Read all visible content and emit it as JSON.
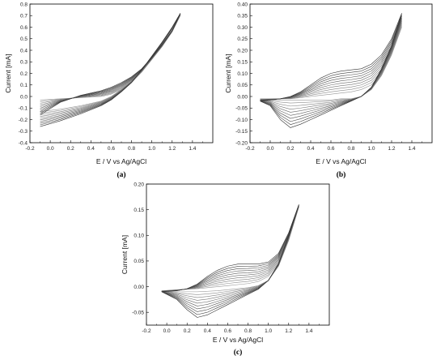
{
  "chart_data": [
    {
      "type": "line",
      "panel_label": "(a)",
      "xlabel": "E / V vs Ag/AgCl",
      "ylabel": "Current [mA]",
      "xlim": [
        -0.2,
        1.6
      ],
      "ylim": [
        -0.4,
        0.8
      ],
      "xticks": [
        -0.2,
        0.0,
        0.2,
        0.4,
        0.6,
        0.8,
        1.0,
        1.2,
        1.4
      ],
      "yticks": [
        -0.4,
        -0.3,
        -0.2,
        -0.1,
        0.0,
        0.1,
        0.2,
        0.3,
        0.4,
        0.5,
        0.6,
        0.7,
        0.8
      ],
      "x_tick_labels": [
        "-0.2",
        "0.0",
        "0.2",
        "0.4",
        "0.6",
        "0.8",
        "1.0",
        "1.2",
        "1.4"
      ],
      "y_tick_labels": [
        "-0.4",
        "-0.3",
        "-0.2",
        "-0.1",
        "0.0",
        "0.1",
        "0.2",
        "0.3",
        "0.4",
        "0.5",
        "0.6",
        "0.7",
        "0.8"
      ],
      "grid": false,
      "line_color": "#555555",
      "cycles": 10,
      "forward_scan": {
        "x": [
          -0.1,
          0.1,
          0.3,
          0.5,
          0.6,
          0.7,
          0.8,
          0.9,
          1.0,
          1.1,
          1.2,
          1.28
        ],
        "y_first": [
          -0.03,
          -0.02,
          -0.01,
          0.0,
          0.02,
          0.06,
          0.12,
          0.21,
          0.32,
          0.43,
          0.56,
          0.7
        ],
        "y_last": [
          -0.16,
          -0.05,
          0.01,
          0.05,
          0.08,
          0.12,
          0.17,
          0.24,
          0.34,
          0.45,
          0.57,
          0.72
        ]
      },
      "reverse_scan": {
        "x": [
          1.28,
          1.2,
          1.1,
          1.0,
          0.9,
          0.8,
          0.7,
          0.6,
          0.5,
          0.3,
          0.1,
          -0.1
        ],
        "y_first": [
          0.7,
          0.58,
          0.45,
          0.33,
          0.22,
          0.13,
          0.06,
          0.0,
          -0.04,
          -0.08,
          -0.11,
          -0.13
        ],
        "y_last": [
          0.72,
          0.6,
          0.47,
          0.35,
          0.23,
          0.12,
          0.04,
          -0.03,
          -0.08,
          -0.15,
          -0.21,
          -0.26
        ]
      }
    },
    {
      "type": "line",
      "panel_label": "(b)",
      "xlabel": "E / V vs Ag/AgCl",
      "ylabel": "Current [mA]",
      "xlim": [
        -0.2,
        1.6
      ],
      "ylim": [
        -0.2,
        0.4
      ],
      "xticks": [
        -0.2,
        0.0,
        0.2,
        0.4,
        0.6,
        0.8,
        1.0,
        1.2,
        1.4
      ],
      "yticks": [
        -0.2,
        -0.15,
        -0.1,
        -0.05,
        0.0,
        0.05,
        0.1,
        0.15,
        0.2,
        0.25,
        0.3,
        0.35,
        0.4
      ],
      "x_tick_labels": [
        "-0.2",
        "0.0",
        "0.2",
        "0.4",
        "0.6",
        "0.8",
        "1.0",
        "1.2",
        "1.4"
      ],
      "y_tick_labels": [
        "-0.20",
        "-0.15",
        "-0.10",
        "-0.05",
        "0.00",
        "0.05",
        "0.10",
        "0.15",
        "0.20",
        "0.25",
        "0.30",
        "0.35",
        "0.40"
      ],
      "grid": false,
      "line_color": "#555555",
      "cycles": 10,
      "forward_scan": {
        "x": [
          -0.1,
          0.0,
          0.1,
          0.2,
          0.3,
          0.4,
          0.5,
          0.6,
          0.7,
          0.8,
          0.9,
          1.0,
          1.1,
          1.2,
          1.3
        ],
        "y_first": [
          -0.01,
          -0.01,
          -0.01,
          -0.01,
          -0.005,
          0.0,
          0.005,
          0.01,
          0.015,
          0.02,
          0.03,
          0.05,
          0.1,
          0.18,
          0.3
        ],
        "y_last": [
          -0.02,
          -0.015,
          -0.01,
          0.0,
          0.02,
          0.05,
          0.08,
          0.1,
          0.11,
          0.115,
          0.12,
          0.14,
          0.18,
          0.25,
          0.36
        ]
      },
      "reverse_scan": {
        "x": [
          1.3,
          1.2,
          1.1,
          1.0,
          0.9,
          0.8,
          0.7,
          0.6,
          0.5,
          0.4,
          0.3,
          0.2,
          0.1,
          0.0,
          -0.1
        ],
        "y_first": [
          0.3,
          0.18,
          0.09,
          0.03,
          0.0,
          -0.01,
          -0.01,
          -0.015,
          -0.015,
          -0.015,
          -0.015,
          -0.015,
          -0.015,
          -0.015,
          -0.01
        ],
        "y_last": [
          0.36,
          0.22,
          0.12,
          0.04,
          0.0,
          -0.02,
          -0.04,
          -0.06,
          -0.08,
          -0.1,
          -0.12,
          -0.135,
          -0.1,
          -0.04,
          -0.02
        ]
      }
    },
    {
      "type": "line",
      "panel_label": "(c)",
      "xlabel": "E / V vs Ag/AgCl",
      "ylabel": "Current [mA]",
      "xlim": [
        -0.2,
        1.6
      ],
      "ylim": [
        -0.075,
        0.2
      ],
      "xticks": [
        -0.2,
        0.0,
        0.2,
        0.4,
        0.6,
        0.8,
        1.0,
        1.2,
        1.4
      ],
      "yticks": [
        -0.05,
        0.0,
        0.05,
        0.1,
        0.15,
        0.2
      ],
      "x_tick_labels": [
        "-0.2",
        "0.0",
        "0.2",
        "0.4",
        "0.6",
        "0.8",
        "1.0",
        "1.2",
        "1.4"
      ],
      "y_tick_labels": [
        "-0.05",
        "0.00",
        "0.05",
        "0.10",
        "0.15",
        "0.20"
      ],
      "grid": false,
      "line_color": "#555555",
      "cycles": 10,
      "forward_scan": {
        "x": [
          -0.05,
          0.1,
          0.2,
          0.3,
          0.4,
          0.5,
          0.6,
          0.7,
          0.8,
          0.9,
          1.0,
          1.1,
          1.2,
          1.3
        ],
        "y_first": [
          -0.008,
          -0.006,
          -0.005,
          -0.004,
          -0.002,
          0.0,
          0.002,
          0.004,
          0.006,
          0.01,
          0.02,
          0.045,
          0.09,
          0.155
        ],
        "y_last": [
          -0.01,
          -0.008,
          -0.004,
          0.005,
          0.02,
          0.032,
          0.04,
          0.044,
          0.044,
          0.044,
          0.048,
          0.065,
          0.105,
          0.16
        ]
      },
      "reverse_scan": {
        "x": [
          1.3,
          1.2,
          1.1,
          1.0,
          0.9,
          0.8,
          0.7,
          0.6,
          0.5,
          0.4,
          0.3,
          0.2,
          0.1,
          -0.05
        ],
        "y_first": [
          0.155,
          0.09,
          0.04,
          0.012,
          0.002,
          -0.002,
          -0.004,
          -0.006,
          -0.008,
          -0.009,
          -0.01,
          -0.01,
          -0.01,
          -0.008
        ],
        "y_last": [
          0.16,
          0.1,
          0.045,
          0.012,
          -0.005,
          -0.015,
          -0.025,
          -0.035,
          -0.045,
          -0.055,
          -0.06,
          -0.045,
          -0.025,
          -0.01
        ]
      }
    }
  ]
}
